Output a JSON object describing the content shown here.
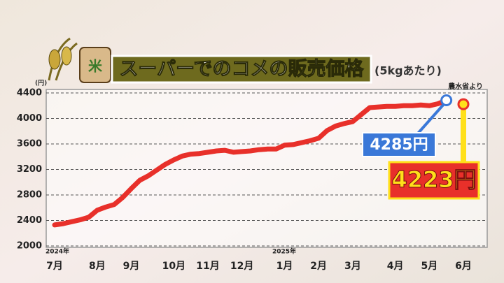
{
  "chart_data": {
    "type": "line",
    "title": "スーパーでのコメの販売価格",
    "subtitle": "(5kgあたり)",
    "y_unit": "(円)",
    "source": "農水省より",
    "icon_label": "米",
    "year_labels": [
      "2024年",
      "2025年"
    ],
    "categories": [
      "7月",
      null,
      null,
      null,
      null,
      "8月",
      null,
      null,
      null,
      "9月",
      null,
      null,
      null,
      null,
      "10月",
      null,
      null,
      null,
      "11月",
      null,
      null,
      null,
      "12月",
      null,
      null,
      null,
      null,
      "1月",
      null,
      null,
      null,
      "2月",
      null,
      null,
      null,
      "3月",
      null,
      null,
      null,
      null,
      "4月",
      null,
      null,
      null,
      "5月",
      null,
      null,
      null,
      "6月"
    ],
    "series": [
      {
        "name": "販売価格",
        "color": "#e8302a",
        "values": [
          2330,
          2350,
          2380,
          2410,
          2450,
          2560,
          2610,
          2650,
          2760,
          2900,
          3030,
          3100,
          3190,
          3280,
          3350,
          3410,
          3440,
          3450,
          3470,
          3490,
          3500,
          3470,
          3480,
          3490,
          3510,
          3520,
          3520,
          3580,
          3590,
          3620,
          3650,
          3690,
          3810,
          3880,
          3920,
          3950,
          4060,
          4170,
          4180,
          4190,
          4190,
          4200,
          4200,
          4210,
          4200,
          4230,
          4285,
          null,
          4223
        ],
        "value_labels": [
          null,
          null,
          null,
          null,
          null,
          null,
          null,
          null,
          null,
          null,
          null,
          null,
          null,
          null,
          null,
          null,
          null,
          null,
          null,
          null,
          null,
          null,
          null,
          null,
          null,
          null,
          null,
          null,
          null,
          null,
          null,
          null,
          null,
          null,
          null,
          null,
          null,
          null,
          null,
          null,
          null,
          null,
          null,
          null,
          null,
          null,
          "4285円",
          null,
          "4223円"
        ]
      }
    ],
    "ylim": [
      2000,
      4400
    ],
    "yticks": [
      2000,
      2400,
      2800,
      3200,
      3600,
      4000,
      4400
    ],
    "grid": true
  }
}
